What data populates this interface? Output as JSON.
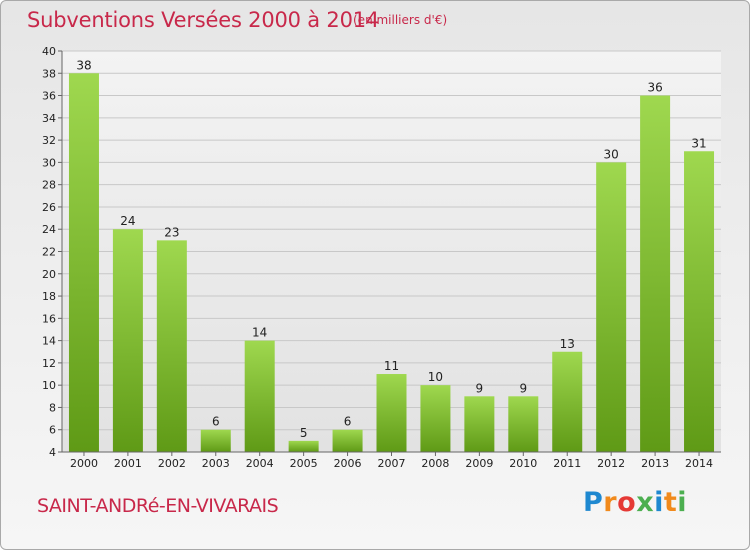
{
  "header": {
    "title": "Subventions Versées 2000 à 2014",
    "subtitle": "(en milliers d'€)"
  },
  "footer": {
    "commune": "SAINT-ANDRé-EN-VIVARAIS",
    "logo": "Proxiti",
    "logo_colors": [
      "#1e88d0",
      "#f18a1c",
      "#e53935",
      "#4caf50",
      "#1e88d0",
      "#f18a1c",
      "#4caf50"
    ]
  },
  "colors": {
    "title": "#c8284a",
    "bar_light": "#9fd84f",
    "bar_dark": "#5f9a16",
    "grid": "#c8c8c8"
  },
  "chart_data": {
    "type": "bar",
    "categories": [
      "2000",
      "2001",
      "2002",
      "2003",
      "2004",
      "2005",
      "2006",
      "2007",
      "2008",
      "2009",
      "2010",
      "2011",
      "2012",
      "2013",
      "2014"
    ],
    "values": [
      38,
      24,
      23,
      6,
      14,
      5,
      6,
      11,
      10,
      9,
      9,
      13,
      30,
      36,
      31
    ],
    "ylim": [
      4,
      40
    ],
    "yticks": [
      4,
      6,
      8,
      10,
      12,
      14,
      16,
      18,
      20,
      22,
      24,
      26,
      28,
      30,
      32,
      34,
      36,
      38,
      40
    ],
    "grid": true,
    "data_labels": true
  }
}
